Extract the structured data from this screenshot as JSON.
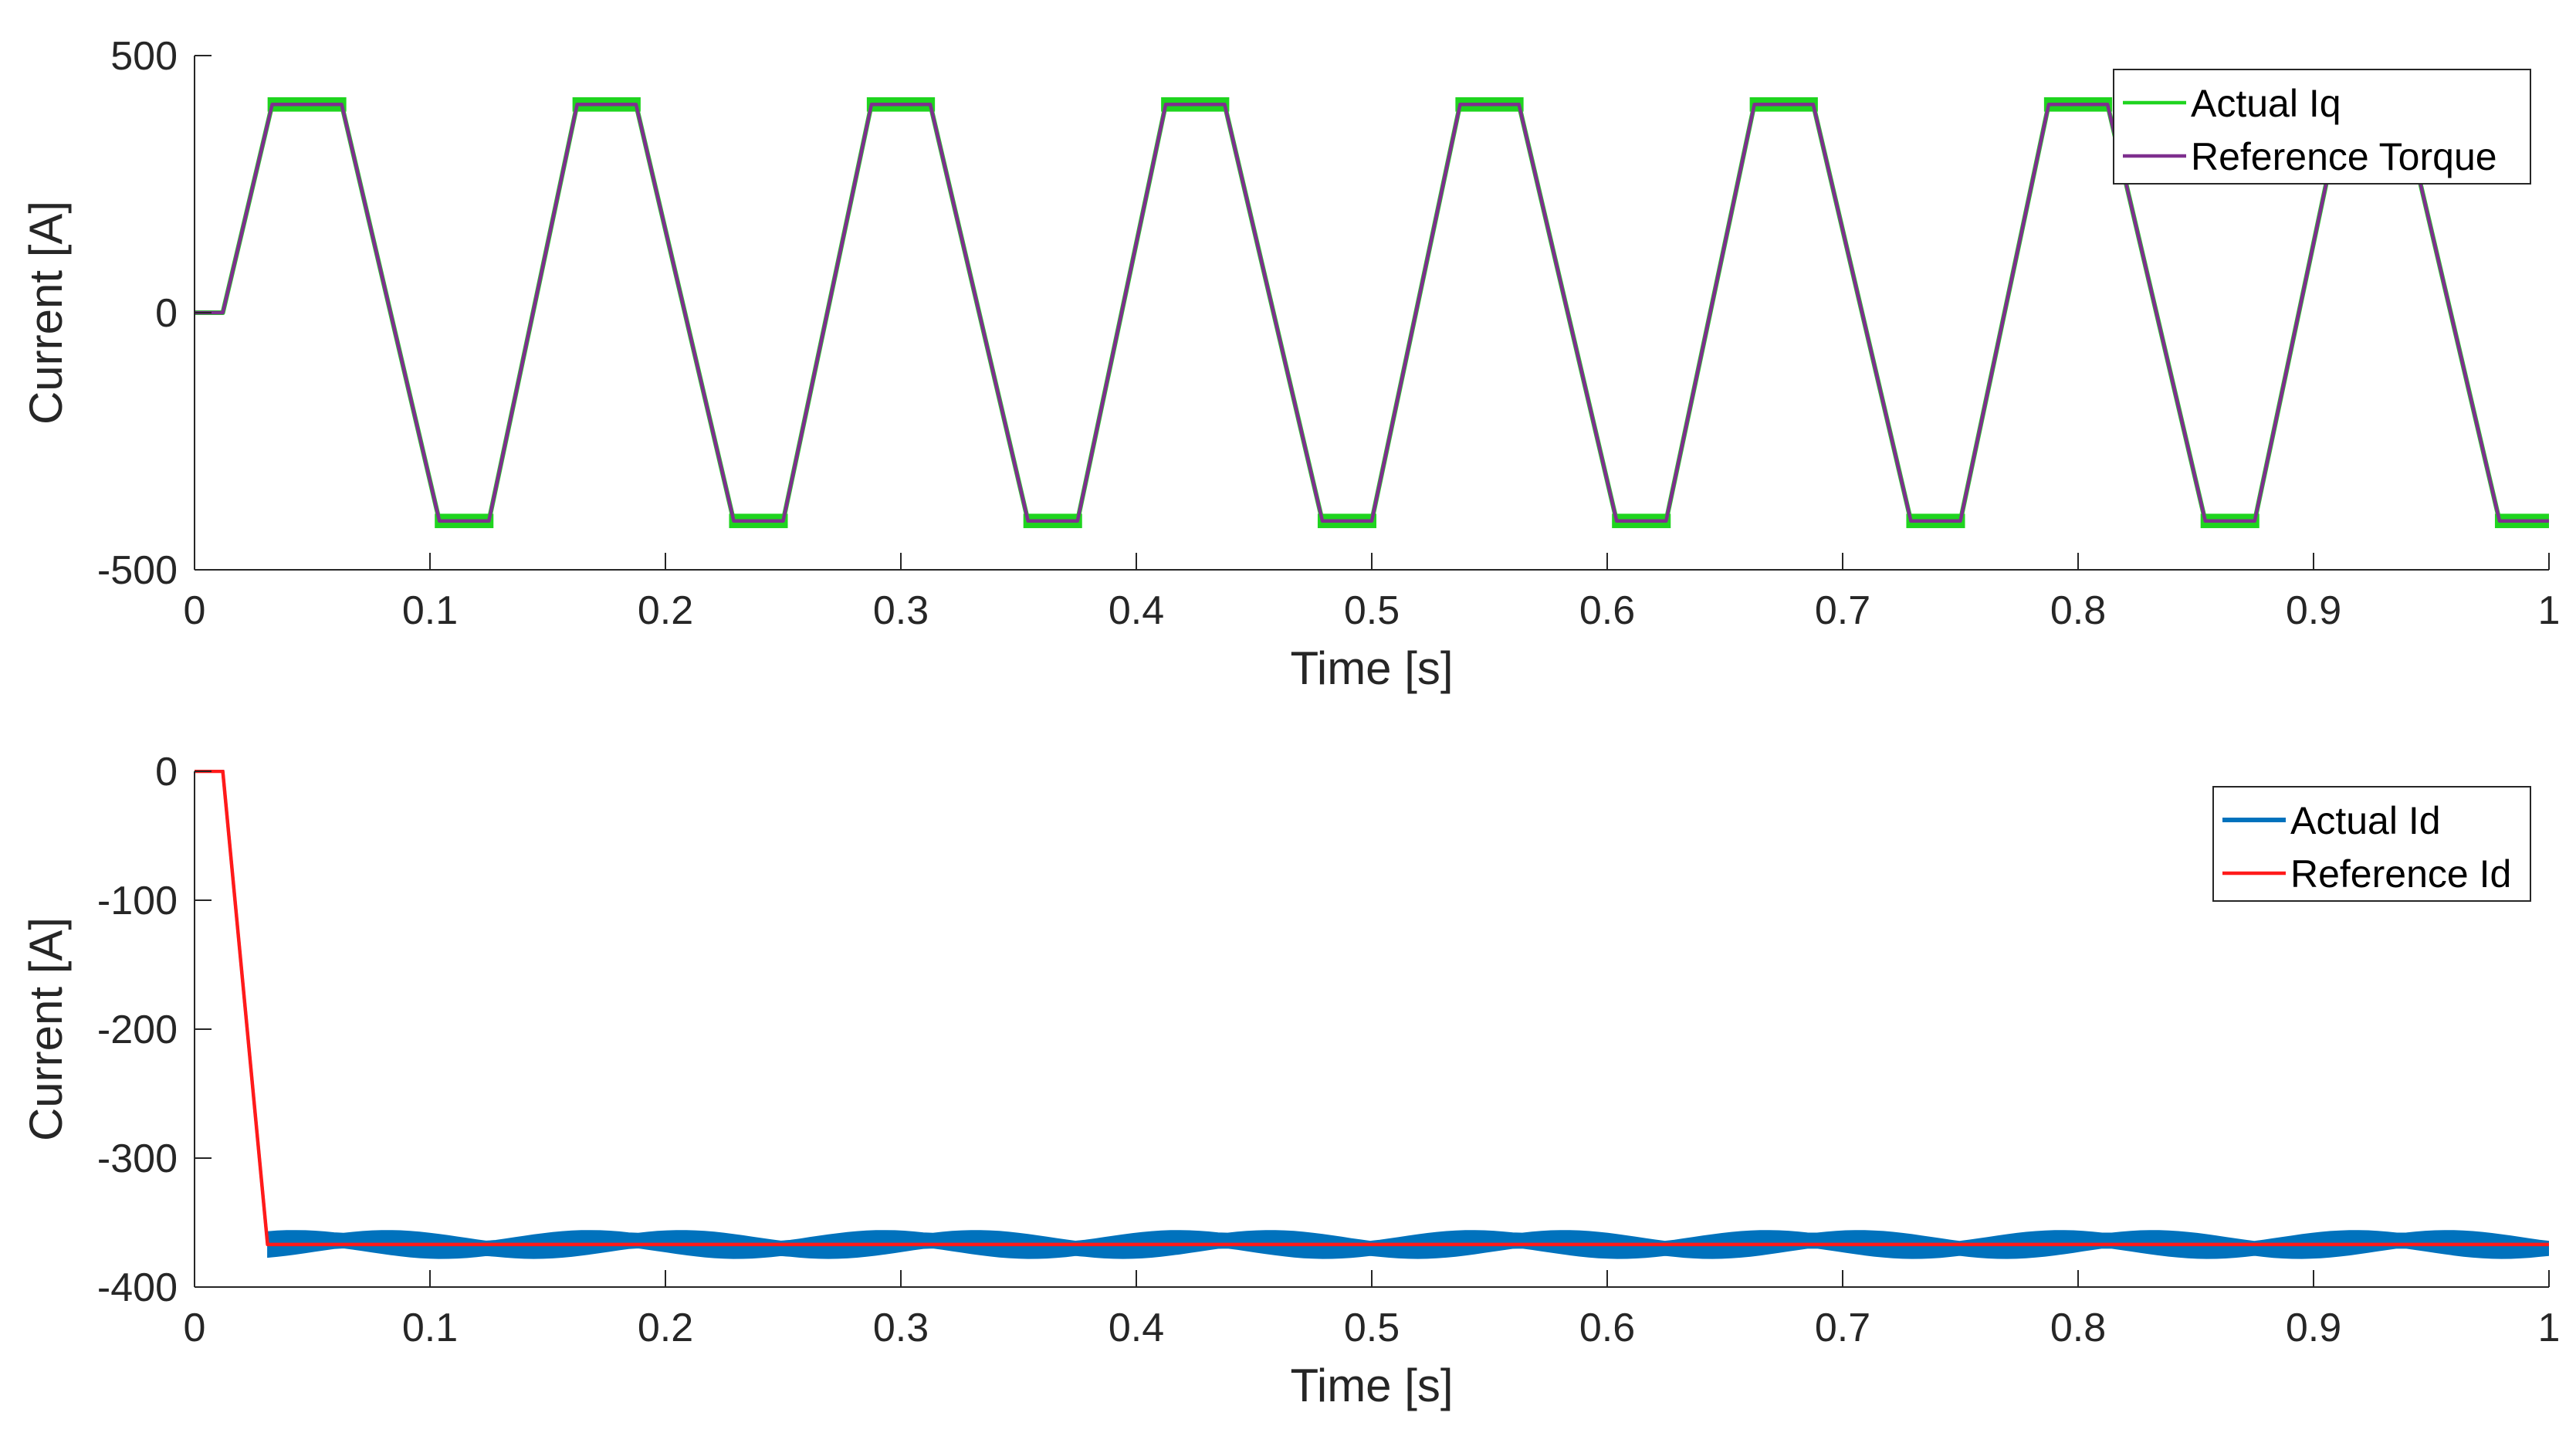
{
  "colors": {
    "actual_iq": "#1fd41f",
    "reference_torque": "#7e2f8e",
    "actual_id": "#0072bd",
    "reference_id": "#ff1a1a",
    "axis": "#262626",
    "legend_border": "#262626"
  },
  "chart_data": [
    {
      "type": "line",
      "title": "",
      "xlabel": "Time [s]",
      "ylabel": "Current [A]",
      "xlim": [
        0,
        1
      ],
      "ylim": [
        -500,
        500
      ],
      "xticks": [
        0,
        0.1,
        0.2,
        0.3,
        0.4,
        0.5,
        0.6,
        0.7,
        0.8,
        0.9,
        1
      ],
      "xtick_labels": [
        "0",
        "0.1",
        "0.2",
        "0.3",
        "0.4",
        "0.5",
        "0.6",
        "0.7",
        "0.8",
        "0.9",
        "1"
      ],
      "yticks": [
        500,
        0,
        -500
      ],
      "ytick_labels": [
        "500",
        "0",
        "-500"
      ],
      "grid": false,
      "legend_position": "top-right",
      "series": [
        {
          "name": "Actual Iq",
          "color_key": "actual_iq",
          "x": [
            0,
            0.012,
            0.033,
            0.0625,
            0.104,
            0.125,
            0.1625,
            0.1875,
            0.229,
            0.25,
            0.2875,
            0.3125,
            0.354,
            0.375,
            0.4125,
            0.4375,
            0.479,
            0.5,
            0.5375,
            0.5625,
            0.604,
            0.625,
            0.6625,
            0.6875,
            0.729,
            0.75,
            0.7875,
            0.8125,
            0.854,
            0.875,
            0.9125,
            0.9375,
            0.979,
            1.0
          ],
          "y": [
            0,
            0,
            405,
            405,
            -405,
            -405,
            405,
            405,
            -405,
            -405,
            405,
            405,
            -405,
            -405,
            405,
            405,
            -405,
            -405,
            405,
            405,
            -405,
            -405,
            405,
            405,
            -405,
            -405,
            405,
            405,
            -405,
            -405,
            405,
            405,
            -405,
            -405
          ],
          "plateau_ripple": 14
        },
        {
          "name": "Reference Torque",
          "color_key": "reference_torque",
          "x": [
            0,
            0.012,
            0.033,
            0.0625,
            0.104,
            0.125,
            0.1625,
            0.1875,
            0.229,
            0.25,
            0.2875,
            0.3125,
            0.354,
            0.375,
            0.4125,
            0.4375,
            0.479,
            0.5,
            0.5375,
            0.5625,
            0.604,
            0.625,
            0.6625,
            0.6875,
            0.729,
            0.75,
            0.7875,
            0.8125,
            0.854,
            0.875,
            0.9125,
            0.9375,
            0.979,
            1.0
          ],
          "y": [
            0,
            0,
            405,
            405,
            -405,
            -405,
            405,
            405,
            -405,
            -405,
            405,
            405,
            -405,
            -405,
            405,
            405,
            -405,
            -405,
            405,
            405,
            -405,
            -405,
            405,
            405,
            -405,
            -405,
            405,
            405,
            -405,
            -405,
            405,
            405,
            -405,
            -405
          ]
        }
      ]
    },
    {
      "type": "line",
      "title": "",
      "xlabel": "Time [s]",
      "ylabel": "Current [A]",
      "xlim": [
        0,
        1
      ],
      "ylim": [
        -400,
        0
      ],
      "xticks": [
        0,
        0.1,
        0.2,
        0.3,
        0.4,
        0.5,
        0.6,
        0.7,
        0.8,
        0.9,
        1
      ],
      "xtick_labels": [
        "0",
        "0.1",
        "0.2",
        "0.3",
        "0.4",
        "0.5",
        "0.6",
        "0.7",
        "0.8",
        "0.9",
        "1"
      ],
      "yticks": [
        0,
        -100,
        -200,
        -300,
        -400
      ],
      "ytick_labels": [
        "0",
        "-100",
        "-200",
        "-300",
        "-400"
      ],
      "grid": false,
      "legend_position": "top-right",
      "series": [
        {
          "name": "Actual Id",
          "color_key": "actual_id",
          "band": true,
          "x_start": 0.031,
          "x_end": 1.0,
          "center": -367,
          "half_width": 10,
          "envelope_period": 0.125,
          "envelope_amplitude": 3,
          "approach_x": [
            0,
            0.012,
            0.031
          ],
          "approach_y": [
            0,
            0,
            -367
          ]
        },
        {
          "name": "Reference Id",
          "color_key": "reference_id",
          "x": [
            0,
            0.012,
            0.031,
            1.0
          ],
          "y": [
            0,
            0,
            -367,
            -367
          ]
        }
      ]
    }
  ]
}
